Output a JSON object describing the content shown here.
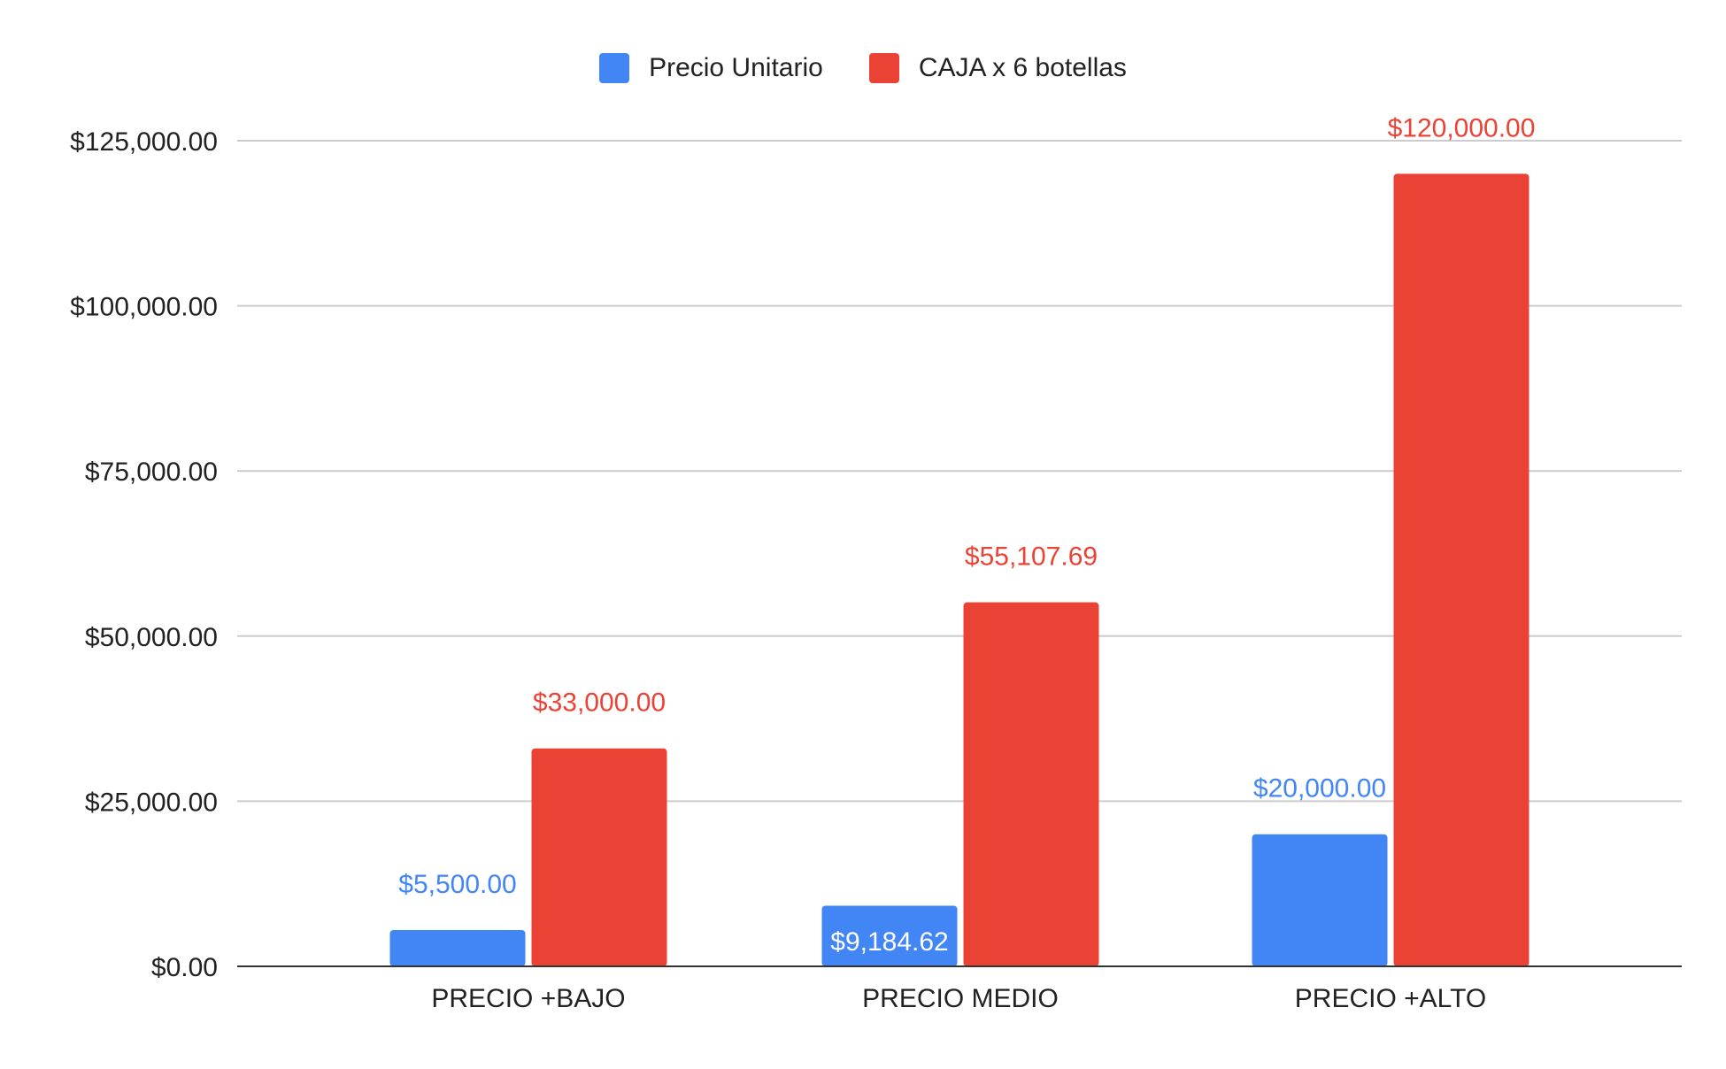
{
  "chart_data": {
    "type": "bar",
    "title": "",
    "xlabel": "",
    "ylabel": "",
    "categories": [
      "PRECIO +BAJO",
      "PRECIO MEDIO",
      "PRECIO +ALTO"
    ],
    "series": [
      {
        "name": "Precio Unitario",
        "color": "#4285F4",
        "values": [
          5500,
          9184.62,
          20000
        ],
        "labels": [
          "$5,500.00",
          "$9,184.62",
          "$20,000.00"
        ]
      },
      {
        "name": "CAJA x 6 botellas",
        "color": "#EA4335",
        "values": [
          33000,
          55107.69,
          120000
        ],
        "labels": [
          "$33,000.00",
          "$55,107.69",
          "$120,000.00"
        ]
      }
    ],
    "ylim": [
      0,
      125000
    ],
    "yticks": [
      0,
      25000,
      50000,
      75000,
      100000,
      125000
    ],
    "ytick_labels": [
      "$0.00",
      "$25,000.00",
      "$50,000.00",
      "$75,000.00",
      "$100,000.00",
      "$125,000.00"
    ],
    "grid": true,
    "legend_position": "top-center"
  }
}
